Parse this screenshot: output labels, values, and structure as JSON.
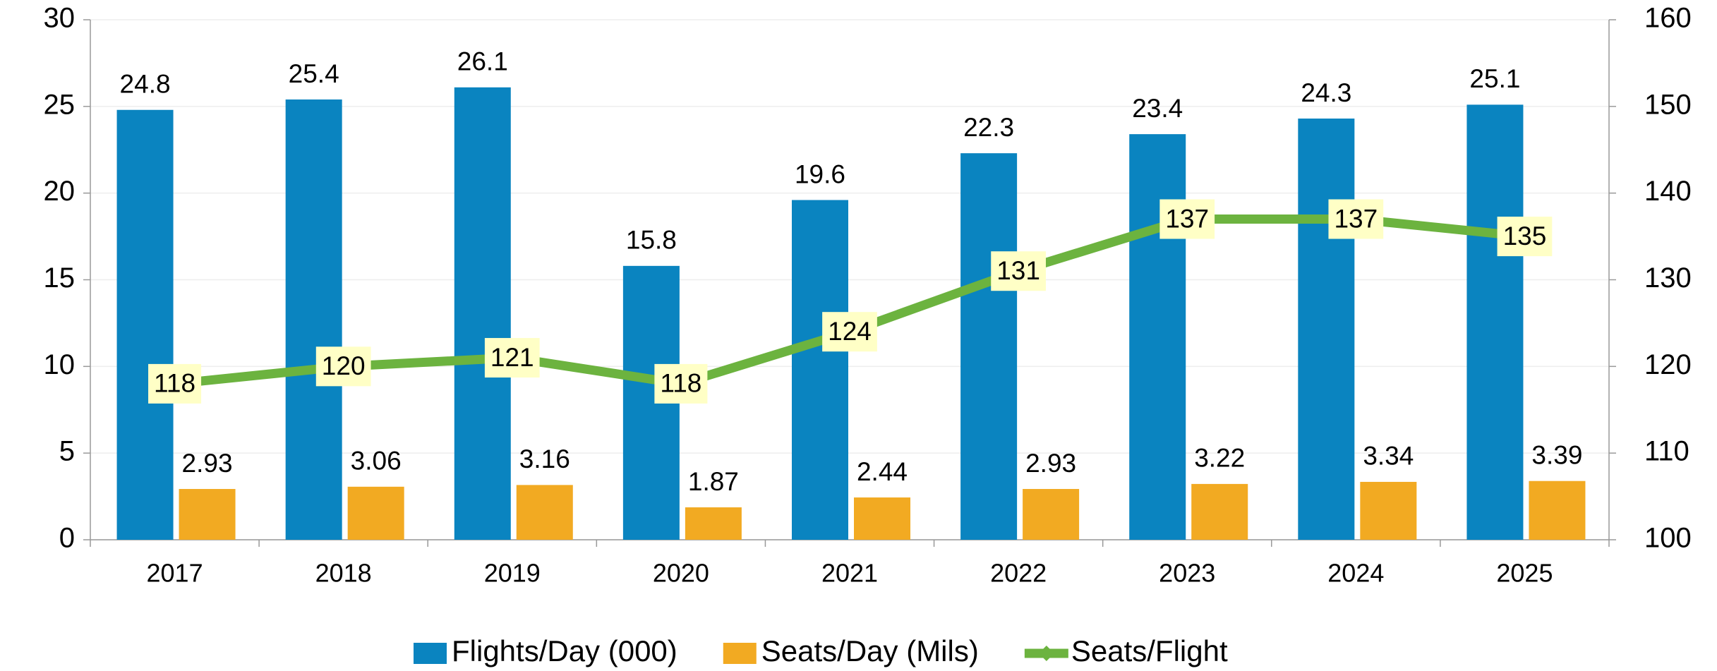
{
  "chart_data": {
    "type": "bar",
    "categories": [
      "2017",
      "2018",
      "2019",
      "2020",
      "2021",
      "2022",
      "2023",
      "2024",
      "2025"
    ],
    "series": [
      {
        "name": "Flights/Day (000)",
        "color": "#0a84c0",
        "type": "bar",
        "values": [
          24.8,
          25.4,
          26.1,
          15.8,
          19.6,
          22.3,
          23.4,
          24.3,
          25.1
        ]
      },
      {
        "name": "Seats/Day (Mils)",
        "color": "#f2aa22",
        "type": "bar",
        "values": [
          2.93,
          3.06,
          3.16,
          1.87,
          2.44,
          2.93,
          3.22,
          3.34,
          3.39
        ]
      },
      {
        "name": "Seats/Flight",
        "color": "#6cb33f",
        "type": "line",
        "axis": "y2",
        "values": [
          118,
          120,
          121,
          118,
          124,
          131,
          137,
          137,
          135
        ]
      }
    ],
    "ylim": [
      0,
      30
    ],
    "yticks": [
      0,
      5,
      10,
      15,
      20,
      25,
      30
    ],
    "y2lim": [
      100,
      160
    ],
    "y2ticks": [
      100,
      110,
      120,
      130,
      140,
      150,
      160
    ],
    "grid": true,
    "legend": "bottom"
  }
}
